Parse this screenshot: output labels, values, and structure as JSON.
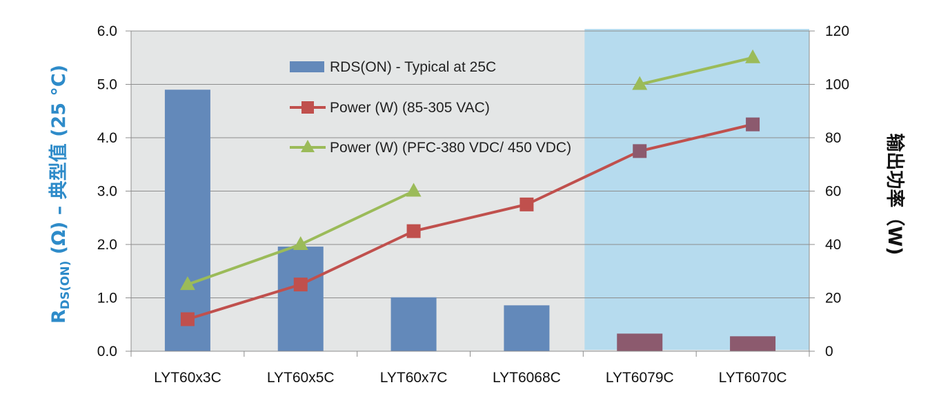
{
  "chart_data": {
    "type": "bar",
    "categories": [
      "LYT60x3C",
      "LYT60x5C",
      "LYT60x7C",
      "LYT6068C",
      "LYT6079C",
      "LYT6070C"
    ],
    "series": [
      {
        "name": "RDS(ON) - Typical at 25C",
        "kind": "bar",
        "axis": "left",
        "color": "#6389BA",
        "highlight_color": "#8C5A6E",
        "values": [
          4.9,
          1.96,
          1.01,
          0.86,
          0.33,
          0.28
        ]
      },
      {
        "name": "Power (W) (85-305 VAC)",
        "kind": "line",
        "marker": "square",
        "axis": "right",
        "color": "#C0504D",
        "highlight_color": "#8C5A6E",
        "values": [
          12,
          25,
          45,
          55,
          75,
          85
        ]
      },
      {
        "name": "Power (W) (PFC-380 VDC/ 450 VDC)",
        "kind": "line",
        "marker": "triangle",
        "axis": "right",
        "color": "#9BBB59",
        "values": [
          25,
          40,
          60,
          null,
          100,
          110
        ]
      }
    ],
    "y_left": {
      "range": [
        0,
        6
      ],
      "ticks": [
        "0.0",
        "1.0",
        "2.0",
        "3.0",
        "4.0",
        "5.0",
        "6.0"
      ],
      "label_main": "R",
      "label_sub": "DS(ON)",
      "label_rest": " (Ω) – 典型值 (25 °C)",
      "color": "#2E8BC9"
    },
    "y_right": {
      "range": [
        0,
        120
      ],
      "ticks": [
        "0",
        "20",
        "40",
        "60",
        "80",
        "100",
        "120"
      ],
      "label": "输出功率（W)"
    },
    "gridlines": true,
    "highlight_categories": [
      "LYT6079C",
      "LYT6070C"
    ],
    "plot_background": "#E4E6E6",
    "highlight_background": "#B6DBEE",
    "legend_position": "inside-top-center"
  }
}
